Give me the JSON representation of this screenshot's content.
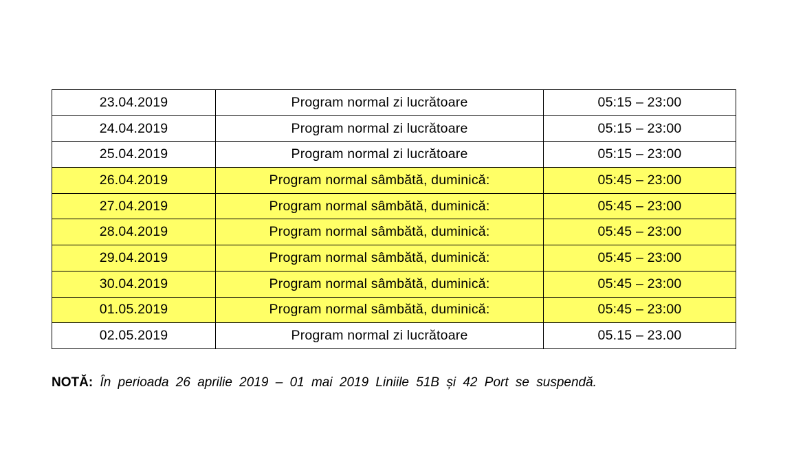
{
  "table": {
    "columns": [
      {
        "key": "date",
        "name": "date"
      },
      {
        "key": "program",
        "name": "program"
      },
      {
        "key": "hours",
        "name": "hours"
      }
    ],
    "rows": [
      {
        "date": "23.04.2019",
        "program": "Program normal zi lucrătoare",
        "hours": "05:15 – 23:00",
        "highlighted": false
      },
      {
        "date": "24.04.2019",
        "program": "Program normal zi lucrătoare",
        "hours": "05:15 – 23:00",
        "highlighted": false
      },
      {
        "date": "25.04.2019",
        "program": "Program normal zi lucrătoare",
        "hours": "05:15 – 23:00",
        "highlighted": false
      },
      {
        "date": "26.04.2019",
        "program": "Program normal sâmbătă, duminică:",
        "hours": "05:45 – 23:00",
        "highlighted": true
      },
      {
        "date": "27.04.2019",
        "program": "Program normal sâmbătă, duminică:",
        "hours": "05:45 – 23:00",
        "highlighted": true
      },
      {
        "date": "28.04.2019",
        "program": "Program normal sâmbătă, duminică:",
        "hours": "05:45 – 23:00",
        "highlighted": true
      },
      {
        "date": "29.04.2019",
        "program": "Program normal sâmbătă, duminică:",
        "hours": "05:45 – 23:00",
        "highlighted": true
      },
      {
        "date": "30.04.2019",
        "program": "Program normal sâmbătă, duminică:",
        "hours": "05:45 – 23:00",
        "highlighted": true
      },
      {
        "date": "01.05.2019",
        "program": "Program normal sâmbătă, duminică:",
        "hours": "05:45 – 23:00",
        "highlighted": true
      },
      {
        "date": "02.05.2019",
        "program": "Program normal zi lucrătoare",
        "hours": "05.15 – 23.00",
        "highlighted": false
      }
    ]
  },
  "note": {
    "label": "NOTĂ:",
    "text": "În perioada 26 aprilie 2019 – 01 mai 2019 Liniile 51B și 42 Port se suspendă."
  },
  "colors": {
    "highlight": "#FFFF66",
    "border": "#000000",
    "text": "#000000",
    "background": "#FFFFFF"
  }
}
